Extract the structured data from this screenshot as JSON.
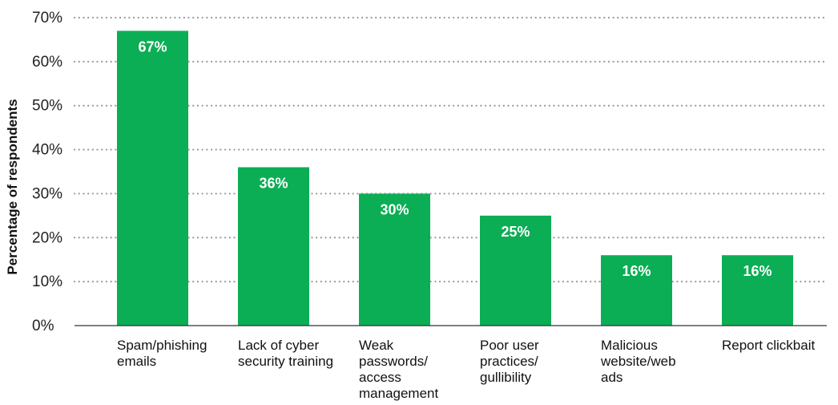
{
  "chart_data": {
    "type": "bar",
    "title": "",
    "xlabel": "",
    "ylabel": "Percentage of respondents",
    "ylim": [
      0,
      70
    ],
    "yticks": [
      0,
      10,
      20,
      30,
      40,
      50,
      60,
      70
    ],
    "ytick_labels": [
      "0%",
      "10%",
      "20%",
      "30%",
      "40%",
      "50%",
      "60%",
      "70%"
    ],
    "grid": true,
    "legend": "none",
    "bar_color": "#0BAE54",
    "categories": [
      [
        "Spam/phishing",
        "emails"
      ],
      [
        "Lack of cyber",
        "security training"
      ],
      [
        "Weak",
        "passwords/",
        "access",
        "management"
      ],
      [
        "Poor user",
        "practices/",
        "gullibility"
      ],
      [
        "Malicious",
        "website/web",
        "ads"
      ],
      [
        "Report clickbait"
      ]
    ],
    "values": [
      67,
      36,
      30,
      25,
      16,
      16
    ],
    "value_labels": [
      "67%",
      "36%",
      "30%",
      "25%",
      "16%",
      "16%"
    ]
  }
}
